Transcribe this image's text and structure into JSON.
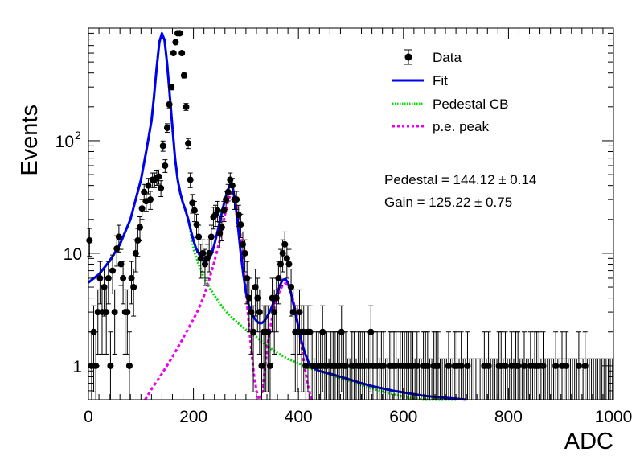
{
  "chart_data": {
    "type": "scatter",
    "xlabel": "ADC",
    "ylabel": "Events",
    "xlim": [
      0,
      1000
    ],
    "ylim": [
      0.5,
      1000
    ],
    "yscale": "log",
    "grid": false,
    "legend_position": "top-right",
    "x_ticks": [
      "0",
      "200",
      "400",
      "600",
      "800",
      "1000"
    ],
    "y_ticks": [
      {
        "value": 1,
        "label": "1"
      },
      {
        "value": 10,
        "label": "10"
      },
      {
        "value": 100,
        "label": "10",
        "sup": "2"
      }
    ],
    "legend": [
      {
        "key": "data",
        "label": "Data"
      },
      {
        "key": "fit",
        "label": "Fit"
      },
      {
        "key": "ped",
        "label": "Pedestal CB"
      },
      {
        "key": "pe",
        "label": "p.e. peak"
      }
    ],
    "annotations": [
      "Pedestal = 144.12 ± 0.14",
      "Gain = 125.22 ± 0.75"
    ],
    "colors": {
      "data": "#000000",
      "fit": "#0000ee",
      "pedestal": "#00dd00",
      "pe": "#ee00ee"
    },
    "series": [
      {
        "name": "Data",
        "style": "markers-with-error-bars",
        "x": [
          2,
          6,
          10,
          14,
          18,
          22,
          26,
          30,
          34,
          38,
          42,
          46,
          50,
          54,
          58,
          62,
          66,
          70,
          74,
          78,
          82,
          86,
          90,
          94,
          98,
          102,
          106,
          110,
          114,
          118,
          122,
          126,
          130,
          134,
          138,
          142,
          146,
          150,
          154,
          158,
          162,
          166,
          170,
          174,
          178,
          182,
          186,
          190,
          194,
          198,
          202,
          206,
          210,
          214,
          218,
          222,
          226,
          230,
          234,
          238,
          242,
          246,
          250,
          254,
          258,
          262,
          266,
          270,
          274,
          278,
          282,
          286,
          290,
          294,
          298,
          302,
          306,
          310,
          314,
          318,
          322,
          326,
          330,
          334,
          338,
          342,
          346,
          350,
          354,
          358,
          362,
          366,
          370,
          374,
          378,
          382,
          386,
          390,
          394,
          398,
          402,
          406,
          410,
          414,
          418,
          422,
          426,
          430,
          434,
          438,
          442,
          446,
          450,
          454,
          458,
          462,
          466,
          470,
          474,
          478,
          482,
          486,
          490,
          494,
          498,
          502,
          506,
          510,
          514,
          518,
          522,
          526,
          530,
          534,
          538,
          542,
          546,
          550,
          554,
          558,
          562,
          566,
          570,
          574,
          578,
          582,
          586,
          590,
          594,
          598,
          602,
          606,
          610,
          614,
          618,
          622,
          626,
          630,
          634,
          638,
          642,
          646,
          650,
          654,
          658,
          662,
          666,
          670,
          674,
          678,
          682,
          686,
          690,
          694,
          698,
          702,
          706,
          710,
          714,
          718,
          722,
          726,
          730,
          734,
          738,
          742,
          746,
          750,
          754,
          758,
          762,
          766,
          770,
          774,
          778,
          782,
          786,
          790,
          794,
          798,
          802,
          806,
          810,
          814,
          818,
          822,
          826,
          830,
          834,
          838,
          842,
          846,
          850,
          854,
          858,
          862,
          866,
          870,
          874,
          878,
          882,
          886,
          890,
          894,
          898,
          902,
          906,
          910,
          914,
          918,
          922,
          926,
          930,
          934,
          938,
          942,
          946,
          950,
          954,
          958,
          962,
          966,
          970,
          974,
          978,
          982,
          986,
          990,
          994,
          998
        ],
        "values": [
          13,
          1,
          2,
          1,
          3,
          6,
          3,
          5,
          3,
          6,
          1,
          7,
          3,
          11,
          14,
          8,
          6,
          3,
          3,
          1,
          6,
          5,
          10,
          13,
          17,
          25,
          35,
          29,
          40,
          30,
          45,
          45,
          47,
          48,
          38,
          90,
          60,
          130,
          210,
          300,
          600,
          750,
          900,
          900,
          600,
          380,
          200,
          95,
          45,
          28,
          24,
          18,
          14,
          9,
          10,
          8,
          9,
          10,
          14,
          21,
          22,
          24,
          15,
          17,
          24,
          30,
          35,
          45,
          40,
          30,
          30,
          22,
          18,
          12,
          10,
          6,
          4,
          3,
          2,
          5,
          4,
          3,
          1,
          2,
          2,
          2,
          1,
          4,
          3,
          4,
          6,
          8,
          10,
          12,
          9,
          8,
          5,
          3,
          2,
          2,
          3,
          2,
          2,
          1,
          2,
          2,
          1,
          0,
          1,
          1,
          1,
          2,
          1,
          1,
          0,
          1,
          1,
          1,
          1,
          1,
          2,
          1,
          1,
          0,
          0,
          1,
          1,
          0,
          1,
          1,
          1,
          1,
          0,
          1,
          2,
          1,
          1,
          1,
          0,
          1,
          1,
          0,
          0,
          1,
          1,
          1,
          1,
          0,
          1,
          1,
          1,
          1,
          1,
          1,
          1,
          0,
          1,
          0,
          0,
          1,
          1,
          1,
          0,
          0,
          1,
          1,
          1,
          0,
          0,
          0,
          0,
          1,
          0,
          0,
          1,
          1,
          0,
          1,
          0,
          0,
          1,
          0,
          0,
          0,
          0,
          0,
          0,
          0,
          1,
          0,
          1,
          0,
          0,
          0,
          0,
          1,
          1,
          0,
          1,
          0,
          0,
          1,
          0,
          1,
          1,
          0,
          0,
          1,
          0,
          0,
          1,
          0,
          1,
          1,
          1,
          0,
          1,
          0,
          0,
          0,
          0,
          0,
          1,
          0,
          0,
          1,
          0,
          1,
          0,
          0,
          0,
          0,
          0,
          1,
          0,
          0,
          1,
          0,
          0,
          0,
          0,
          0,
          0,
          0,
          0,
          0,
          0,
          0,
          0,
          0
        ]
      },
      {
        "name": "Fit",
        "style": "solid",
        "x": [
          0,
          20,
          40,
          60,
          80,
          100,
          110,
          120,
          125,
          130,
          135,
          140,
          145,
          150,
          155,
          160,
          165,
          170,
          175,
          180,
          185,
          190,
          195,
          200,
          205,
          210,
          215,
          220,
          225,
          230,
          235,
          240,
          245,
          250,
          255,
          260,
          265,
          270,
          275,
          280,
          285,
          290,
          295,
          300,
          305,
          310,
          315,
          320,
          325,
          330,
          335,
          340,
          345,
          350,
          355,
          360,
          365,
          370,
          375,
          380,
          385,
          390,
          395,
          400,
          405,
          410,
          415,
          420,
          425,
          430,
          440,
          460,
          480,
          500,
          520,
          540,
          560,
          580,
          600,
          620,
          640,
          660,
          680,
          700,
          720
        ],
        "values": [
          5.5,
          6.5,
          8.5,
          12,
          20,
          45,
          80,
          150,
          250,
          450,
          750,
          900,
          780,
          480,
          250,
          130,
          70,
          45,
          34,
          28,
          24,
          20,
          16,
          13,
          11,
          10,
          9,
          8.5,
          8.5,
          9,
          10,
          12,
          15,
          19,
          24,
          30,
          36,
          41,
          38,
          28,
          17,
          10,
          6.5,
          4.5,
          3.5,
          3,
          2.7,
          2.5,
          2.4,
          2.4,
          2.5,
          2.7,
          3,
          3.4,
          3.9,
          4.5,
          5.2,
          5.8,
          5.9,
          5.5,
          4.6,
          3.6,
          2.8,
          2.2,
          1.7,
          1.4,
          1.2,
          1.05,
          0.98,
          0.95,
          0.9,
          0.85,
          0.8,
          0.75,
          0.7,
          0.66,
          0.63,
          0.6,
          0.58,
          0.56,
          0.54,
          0.53,
          0.52,
          0.51,
          0.5
        ]
      },
      {
        "name": "Pedestal CB",
        "style": "dotted",
        "x": [
          0,
          20,
          40,
          60,
          80,
          100,
          110,
          120,
          125,
          130,
          135,
          140,
          145,
          150,
          155,
          160,
          165,
          170,
          175,
          180,
          185,
          190,
          195,
          200,
          210,
          220,
          240,
          260,
          280,
          300,
          320,
          340,
          360,
          380,
          400,
          420,
          440,
          460,
          480,
          500,
          520,
          540,
          560,
          580,
          600,
          620,
          640,
          660,
          680,
          700
        ],
        "values": [
          5.5,
          6.5,
          8.5,
          12,
          20,
          45,
          80,
          150,
          250,
          450,
          750,
          900,
          780,
          480,
          250,
          130,
          70,
          45,
          34,
          28,
          24,
          20,
          15,
          11,
          8,
          6,
          4.2,
          3.1,
          2.5,
          2.1,
          1.8,
          1.5,
          1.3,
          1.15,
          1.05,
          0.96,
          0.9,
          0.84,
          0.78,
          0.73,
          0.68,
          0.63,
          0.59,
          0.56,
          0.53,
          0.51,
          0.49,
          0.47,
          0.45,
          0.43
        ]
      },
      {
        "name": "p.e. peak",
        "style": "dotted",
        "x": [
          108,
          120,
          140,
          160,
          180,
          200,
          210,
          220,
          230,
          240,
          250,
          255,
          260,
          265,
          270,
          275,
          280,
          285,
          290,
          295,
          300,
          305,
          310,
          315,
          320,
          325,
          330,
          335,
          340,
          345,
          350,
          355,
          360,
          365,
          370,
          375,
          380,
          385,
          390,
          395,
          400,
          405,
          410,
          415,
          420,
          425,
          430
        ],
        "values": [
          0.5,
          0.62,
          0.85,
          1.2,
          1.75,
          2.6,
          3.2,
          4.2,
          5.8,
          8.5,
          13,
          17,
          22,
          28,
          33,
          35,
          30,
          22,
          14,
          8,
          4.5,
          2.5,
          1.4,
          0.85,
          0.6,
          0.5,
          0.55,
          0.85,
          1.4,
          2,
          2.7,
          3.4,
          4.1,
          4.7,
          5.2,
          5.4,
          5.2,
          4.6,
          3.8,
          3,
          2.2,
          1.6,
          1.1,
          0.8,
          0.6,
          0.5,
          0.45
        ]
      }
    ]
  }
}
